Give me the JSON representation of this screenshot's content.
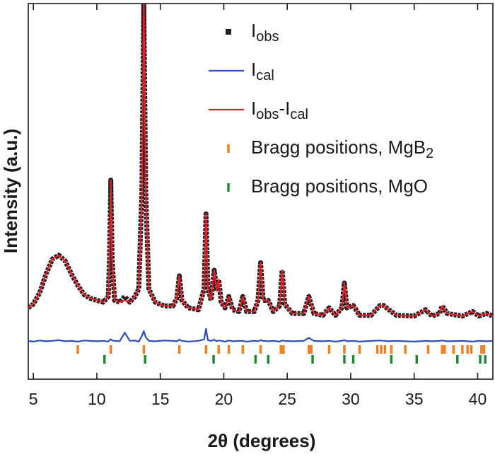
{
  "chart_data": {
    "type": "line",
    "x_label": "2θ (degrees)",
    "y_label": "Intensity (a.u.)",
    "xlim": [
      4.6,
      41.2
    ],
    "ylim": [
      0,
      100
    ],
    "xticks": [
      5,
      10,
      15,
      20,
      25,
      30,
      35,
      40
    ],
    "grid": false,
    "legend": "upper right",
    "x": [
      4.6,
      5,
      5.5,
      6,
      6.5,
      7,
      7.5,
      8,
      8.5,
      9,
      9.5,
      10,
      10.5,
      10.9,
      11.0,
      11.1,
      11.2,
      11.4,
      11.8,
      12.2,
      12.6,
      13.0,
      13.3,
      13.55,
      13.7,
      13.85,
      14.1,
      14.6,
      15.3,
      16.0,
      16.3,
      16.5,
      16.7,
      17.2,
      18.0,
      18.45,
      18.6,
      18.75,
      19.0,
      19.25,
      19.45,
      19.6,
      19.8,
      20.1,
      20.4,
      20.7,
      21.2,
      21.5,
      21.8,
      22.4,
      22.7,
      22.9,
      23.1,
      23.5,
      23.9,
      24.4,
      24.6,
      24.8,
      25.4,
      26.3,
      26.7,
      27.1,
      27.8,
      28.3,
      28.8,
      29.3,
      29.5,
      29.7,
      30.2,
      30.7,
      31.6,
      32.3,
      32.6,
      33.0,
      33.6,
      35.0,
      35.9,
      36.4,
      37.0,
      37.2,
      37.6,
      38.8,
      39.6,
      40.1,
      40.7,
      41.2
    ],
    "series": [
      {
        "name": "Iobs",
        "color": "#1f1f1f",
        "marker": "square",
        "values": [
          19,
          20,
          23,
          28,
          32,
          33,
          31.5,
          28,
          25,
          22.5,
          21.5,
          21,
          20.5,
          22,
          32,
          53,
          32,
          21,
          20.5,
          22,
          20.5,
          22,
          24,
          50,
          100,
          50,
          24,
          20.5,
          19.5,
          19.5,
          21.5,
          27.5,
          21,
          19,
          18.5,
          24,
          44,
          24,
          21,
          29,
          23.5,
          26.5,
          20.5,
          19,
          22,
          18.5,
          18,
          22,
          18,
          18,
          21,
          31,
          21,
          21,
          18,
          19.5,
          29,
          20,
          17.5,
          17.5,
          22,
          17.5,
          17,
          19,
          17,
          19,
          25.6,
          19,
          19.6,
          17,
          17,
          19.6,
          19.6,
          18.5,
          17,
          16.8,
          18.5,
          16.8,
          17.5,
          19.5,
          17.5,
          16.8,
          18,
          16.8,
          17.5,
          16.8
        ]
      },
      {
        "name": "Ical",
        "color": "#2d4fb5",
        "marker": "line",
        "values": [
          10.2,
          10.0,
          10.3,
          10.1,
          10.2,
          10.4,
          10.1,
          10.2,
          10.0,
          10.3,
          10.2,
          10.1,
          10.2,
          10.0,
          10.4,
          10.6,
          10.3,
          10.2,
          10.1,
          12.4,
          10.2,
          10.3,
          10.0,
          11.5,
          12.8,
          11.2,
          10.2,
          10.1,
          10.3,
          10.2,
          10.1,
          10.5,
          10.2,
          10.0,
          10.2,
          10.6,
          13.4,
          10.4,
          10.2,
          10.5,
          10.1,
          10.3,
          10.2,
          10.0,
          10.3,
          10.1,
          10.2,
          10.2,
          10.0,
          10.2,
          10.1,
          10.4,
          10.2,
          10.1,
          10.2,
          10.0,
          10.3,
          10.2,
          10.1,
          10.2,
          11.0,
          10.2,
          10.1,
          10.2,
          10.0,
          10.2,
          10.4,
          10.1,
          10.2,
          10.0,
          10.2,
          10.3,
          10.2,
          10.1,
          10.2,
          10.0,
          10.2,
          10.1,
          10.2,
          10.3,
          10.1,
          10.2,
          10.0,
          10.2,
          10.1,
          10.2
        ]
      },
      {
        "name": "Iobs-Ical",
        "color": "#e3202b",
        "marker": "line",
        "values": [
          19,
          20,
          23,
          28,
          32,
          33,
          31.5,
          28,
          25,
          22.5,
          21.5,
          21,
          20.5,
          22,
          32,
          53,
          32,
          21,
          20.5,
          21,
          20.5,
          22,
          24,
          50,
          100,
          50,
          24,
          20.5,
          19.5,
          19.5,
          21.5,
          27.5,
          21,
          19,
          18.5,
          24,
          44,
          24,
          21,
          29,
          23.5,
          26.5,
          20.5,
          19,
          22,
          18.5,
          18,
          22,
          18,
          18,
          21,
          31,
          21,
          21,
          18,
          19.5,
          29,
          20,
          17.5,
          17.5,
          22,
          17.5,
          17,
          19,
          17,
          19,
          25.6,
          19,
          19.6,
          17,
          17,
          19.6,
          19.6,
          18.5,
          17,
          16.8,
          18.5,
          16.8,
          17.5,
          19.5,
          17.5,
          16.8,
          18,
          16.8,
          17.5,
          16.8
        ]
      }
    ],
    "bragg": [
      {
        "name": "Bragg positions, MgB2",
        "color": "#f07f1f",
        "x": [
          8.5,
          11.1,
          13.7,
          16.5,
          18.6,
          19.6,
          20.4,
          21.5,
          22.9,
          24.5,
          24.7,
          26.7,
          26.9,
          28.3,
          29.5,
          30.7,
          32.1,
          32.4,
          32.7,
          33.2,
          34.3,
          36.1,
          37.2,
          37.4,
          38.1,
          38.8,
          39.2,
          39.5,
          40.3,
          40.5
        ]
      },
      {
        "name": "Bragg positions, MgO",
        "color": "#1d8a3a",
        "x": [
          10.6,
          13.8,
          19.2,
          22.5,
          23.5,
          27.0,
          29.5,
          30.2,
          33.2,
          35.2,
          38.4,
          40.2,
          40.6
        ]
      }
    ]
  }
}
